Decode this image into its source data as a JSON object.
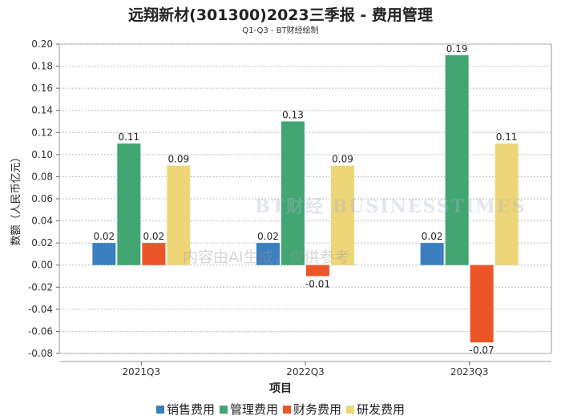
{
  "title": "远翔新材(301300)2023三季报 - 费用管理",
  "subtitle": "Q1-Q3 - BT财经绘制",
  "watermark": {
    "logo": "BT财经 BUSINESSTIMES",
    "notice": "内容由AI生成，仅供参考"
  },
  "chart_data": {
    "type": "bar",
    "title": "远翔新材(301300)2023三季报 - 费用管理",
    "xlabel": "项目",
    "ylabel": "数额（人民币亿元）",
    "categories": [
      "2021Q3",
      "2022Q3",
      "2023Q3"
    ],
    "ylim": [
      -0.08,
      0.2
    ],
    "yticks": [
      "0.20",
      "0.18",
      "0.16",
      "0.14",
      "0.12",
      "0.10",
      "0.08",
      "0.06",
      "0.04",
      "0.02",
      "0.00",
      "-0.02",
      "-0.04",
      "-0.06",
      "-0.08"
    ],
    "grid": true,
    "legend": "bottom",
    "series": [
      {
        "name": "销售费用",
        "color": "#3a7fc0",
        "values": [
          0.02,
          0.02,
          0.02
        ],
        "labels": [
          "0.02",
          "0.02",
          "0.02"
        ]
      },
      {
        "name": "管理费用",
        "color": "#41a672",
        "values": [
          0.11,
          0.13,
          0.19
        ],
        "labels": [
          "0.11",
          "0.13",
          "0.19"
        ]
      },
      {
        "name": "财务费用",
        "color": "#ec5528",
        "values": [
          0.02,
          -0.01,
          -0.07
        ],
        "labels": [
          "0.02",
          "-0.01",
          "-0.07"
        ]
      },
      {
        "name": "研发费用",
        "color": "#eed678",
        "values": [
          0.09,
          0.09,
          0.11
        ],
        "labels": [
          "0.09",
          "0.09",
          "0.11"
        ]
      }
    ]
  }
}
